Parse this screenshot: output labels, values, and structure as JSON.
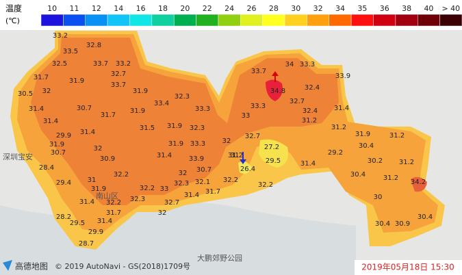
{
  "legend": {
    "title": "温度",
    "unit": "(℃)",
    "items": [
      {
        "label": "10",
        "color": "#1c14dc"
      },
      {
        "label": "11",
        "color": "#0a50f0"
      },
      {
        "label": "12",
        "color": "#0890f5"
      },
      {
        "label": "14",
        "color": "#10c4f8"
      },
      {
        "label": "16",
        "color": "#10e6e6"
      },
      {
        "label": "18",
        "color": "#10d0a0"
      },
      {
        "label": "20",
        "color": "#00b050"
      },
      {
        "label": "22",
        "color": "#20b020"
      },
      {
        "label": "24",
        "color": "#90d010"
      },
      {
        "label": "26",
        "color": "#e0f020"
      },
      {
        "label": "28",
        "color": "#ffff20"
      },
      {
        "label": "30",
        "color": "#ffd020"
      },
      {
        "label": "32",
        "color": "#ffa010"
      },
      {
        "label": "34",
        "color": "#ff6a00"
      },
      {
        "label": "35",
        "color": "#ff1010"
      },
      {
        "label": "36",
        "color": "#d00010"
      },
      {
        "label": "38",
        "color": "#a00010"
      },
      {
        "label": "40",
        "color": "#700008"
      },
      {
        "label": "> 40",
        "color": "#3a0004"
      }
    ]
  },
  "temperatures": [
    33.2,
    32.8,
    33.5,
    33.7,
    33.2,
    32.5,
    32.7,
    33.7,
    31.9,
    31.7,
    32,
    30.5,
    31.9,
    32.3,
    33.4,
    30.7,
    31.7,
    31.9,
    33.3,
    31.4,
    31.4,
    31.5,
    31.9,
    32.3,
    31.4,
    29.9,
    31.9,
    30.7,
    32,
    30.9,
    31.4,
    31.9,
    33.3,
    32,
    28.4,
    33.9,
    31,
    30.7,
    32,
    32.2,
    31,
    29.4,
    32.2,
    33,
    32.3,
    32.1,
    32.2,
    31.9,
    31.7,
    31.4,
    32.3,
    31.4,
    32.2,
    32.7,
    28.2,
    31.7,
    32,
    31.4,
    29.5,
    29.9,
    28.7,
    33.7,
    34,
    33.3,
    33.9,
    34.8,
    32.4,
    33.3,
    32.7,
    32.4,
    31.4,
    33,
    31.2,
    31.2,
    31.9,
    31.2,
    30.4,
    27.2,
    29.2,
    29.5,
    31.4,
    30.2,
    31.2,
    26.4,
    30.4,
    31.2,
    34.2,
    32.2,
    30,
    30.4,
    30.9,
    30.4,
    32.7,
    31.2
  ],
  "places": [
    "深圳宝安",
    "南山区",
    "大鹏郊野公园"
  ],
  "footer": {
    "logo": "高德地图",
    "copyright": "© 2019 AutoNavi - GS(2018)1709号",
    "timestamp": "2019年05月18日 15:30"
  }
}
